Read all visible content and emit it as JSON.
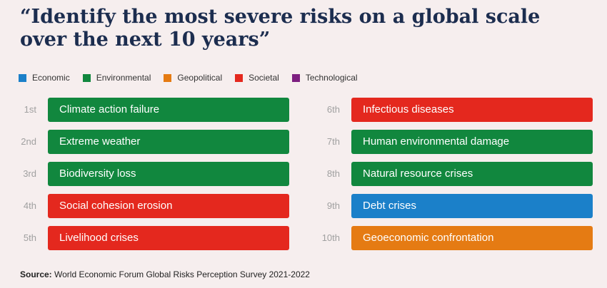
{
  "title": "“Identify the most severe risks on a global scale over the next 10 years”",
  "chart_data": {
    "type": "table",
    "legend": [
      {
        "label": "Economic",
        "color": "#1b80c9"
      },
      {
        "label": "Environmental",
        "color": "#11873e"
      },
      {
        "label": "Geopolitical",
        "color": "#e57b13"
      },
      {
        "label": "Societal",
        "color": "#e4281e"
      },
      {
        "label": "Technological",
        "color": "#7d1f80"
      }
    ],
    "rows": [
      {
        "rank": "1st",
        "label": "Climate action failure",
        "category": "Environmental"
      },
      {
        "rank": "2nd",
        "label": "Extreme weather",
        "category": "Environmental"
      },
      {
        "rank": "3rd",
        "label": "Biodiversity loss",
        "category": "Environmental"
      },
      {
        "rank": "4th",
        "label": "Social cohesion erosion",
        "category": "Societal"
      },
      {
        "rank": "5th",
        "label": "Livelihood crises",
        "category": "Societal"
      },
      {
        "rank": "6th",
        "label": "Infectious diseases",
        "category": "Societal"
      },
      {
        "rank": "7th",
        "label": "Human environmental damage",
        "category": "Environmental"
      },
      {
        "rank": "8th",
        "label": "Natural resource crises",
        "category": "Environmental"
      },
      {
        "rank": "9th",
        "label": "Debt crises",
        "category": "Economic"
      },
      {
        "rank": "10th",
        "label": "Geoeconomic confrontation",
        "category": "Geopolitical"
      }
    ]
  },
  "source": {
    "prefix": "Source:",
    "text": " World Economic Forum Global Risks Perception Survey 2021-2022"
  }
}
